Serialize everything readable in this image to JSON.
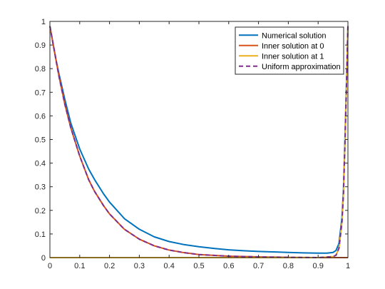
{
  "chart_data": {
    "type": "line",
    "title": "",
    "xlabel": "",
    "ylabel": "",
    "xlim": [
      0,
      1
    ],
    "ylim": [
      0,
      1
    ],
    "xticks": [
      0,
      0.1,
      0.2,
      0.3,
      0.4,
      0.5,
      0.6,
      0.7,
      0.8,
      0.9,
      1
    ],
    "xtick_labels": [
      "0",
      "0.1",
      "0.2",
      "0.3",
      "0.4",
      "0.5",
      "0.6",
      "0.7",
      "0.8",
      "0.9",
      "1"
    ],
    "yticks": [
      0,
      0.1,
      0.2,
      0.3,
      0.4,
      0.5,
      0.6,
      0.7,
      0.8,
      0.9,
      1
    ],
    "ytick_labels": [
      "0",
      "0.1",
      "0.2",
      "0.3",
      "0.4",
      "0.5",
      "0.6",
      "0.7",
      "0.8",
      "0.9",
      "1"
    ],
    "grid": false,
    "legend_position": "top-right",
    "series": [
      {
        "name": "Numerical solution",
        "color": "#0072BD",
        "style": "solid",
        "x": [
          0,
          0.01,
          0.02,
          0.03,
          0.05,
          0.07,
          0.1,
          0.13,
          0.15,
          0.18,
          0.2,
          0.25,
          0.3,
          0.35,
          0.4,
          0.45,
          0.5,
          0.55,
          0.6,
          0.65,
          0.7,
          0.75,
          0.8,
          0.85,
          0.9,
          0.93,
          0.95,
          0.96,
          0.97,
          0.98,
          0.985,
          0.99,
          0.995,
          1
        ],
        "y": [
          0.98,
          0.91,
          0.84,
          0.78,
          0.67,
          0.57,
          0.46,
          0.375,
          0.33,
          0.27,
          0.235,
          0.165,
          0.12,
          0.088,
          0.068,
          0.055,
          0.046,
          0.039,
          0.033,
          0.029,
          0.026,
          0.024,
          0.022,
          0.02,
          0.019,
          0.019,
          0.022,
          0.03,
          0.06,
          0.17,
          0.29,
          0.5,
          0.74,
          0.98
        ]
      },
      {
        "name": "Inner solution at 0",
        "color": "#D95319",
        "style": "solid",
        "x": [
          0,
          0.01,
          0.02,
          0.03,
          0.05,
          0.07,
          0.1,
          0.13,
          0.15,
          0.18,
          0.2,
          0.25,
          0.3,
          0.35,
          0.4,
          0.45,
          0.5,
          0.6,
          0.7,
          0.8,
          0.9,
          1
        ],
        "y": [
          0.98,
          0.91,
          0.84,
          0.77,
          0.65,
          0.55,
          0.43,
          0.33,
          0.28,
          0.22,
          0.185,
          0.12,
          0.078,
          0.05,
          0.032,
          0.021,
          0.013,
          0.006,
          0.003,
          0.001,
          0.0,
          0.0
        ]
      },
      {
        "name": "Inner solution at 1",
        "color": "#EDB120",
        "style": "solid",
        "x": [
          0,
          0.9,
          0.95,
          0.96,
          0.97,
          0.98,
          0.985,
          0.99,
          0.995,
          1
        ],
        "y": [
          0,
          0,
          0.004,
          0.01,
          0.04,
          0.15,
          0.27,
          0.48,
          0.72,
          0.98
        ]
      },
      {
        "name": "Uniform approximation",
        "color": "#7E2F8E",
        "style": "dashed",
        "x": [
          0,
          0.01,
          0.02,
          0.03,
          0.05,
          0.07,
          0.1,
          0.13,
          0.15,
          0.18,
          0.2,
          0.25,
          0.3,
          0.35,
          0.4,
          0.45,
          0.5,
          0.6,
          0.7,
          0.8,
          0.9,
          0.95,
          0.96,
          0.97,
          0.98,
          0.985,
          0.99,
          0.995,
          1
        ],
        "y": [
          0.98,
          0.91,
          0.84,
          0.77,
          0.65,
          0.55,
          0.43,
          0.33,
          0.28,
          0.22,
          0.185,
          0.12,
          0.078,
          0.05,
          0.032,
          0.021,
          0.013,
          0.006,
          0.003,
          0.001,
          0.0,
          0.004,
          0.01,
          0.04,
          0.15,
          0.27,
          0.48,
          0.72,
          0.98
        ]
      }
    ]
  }
}
